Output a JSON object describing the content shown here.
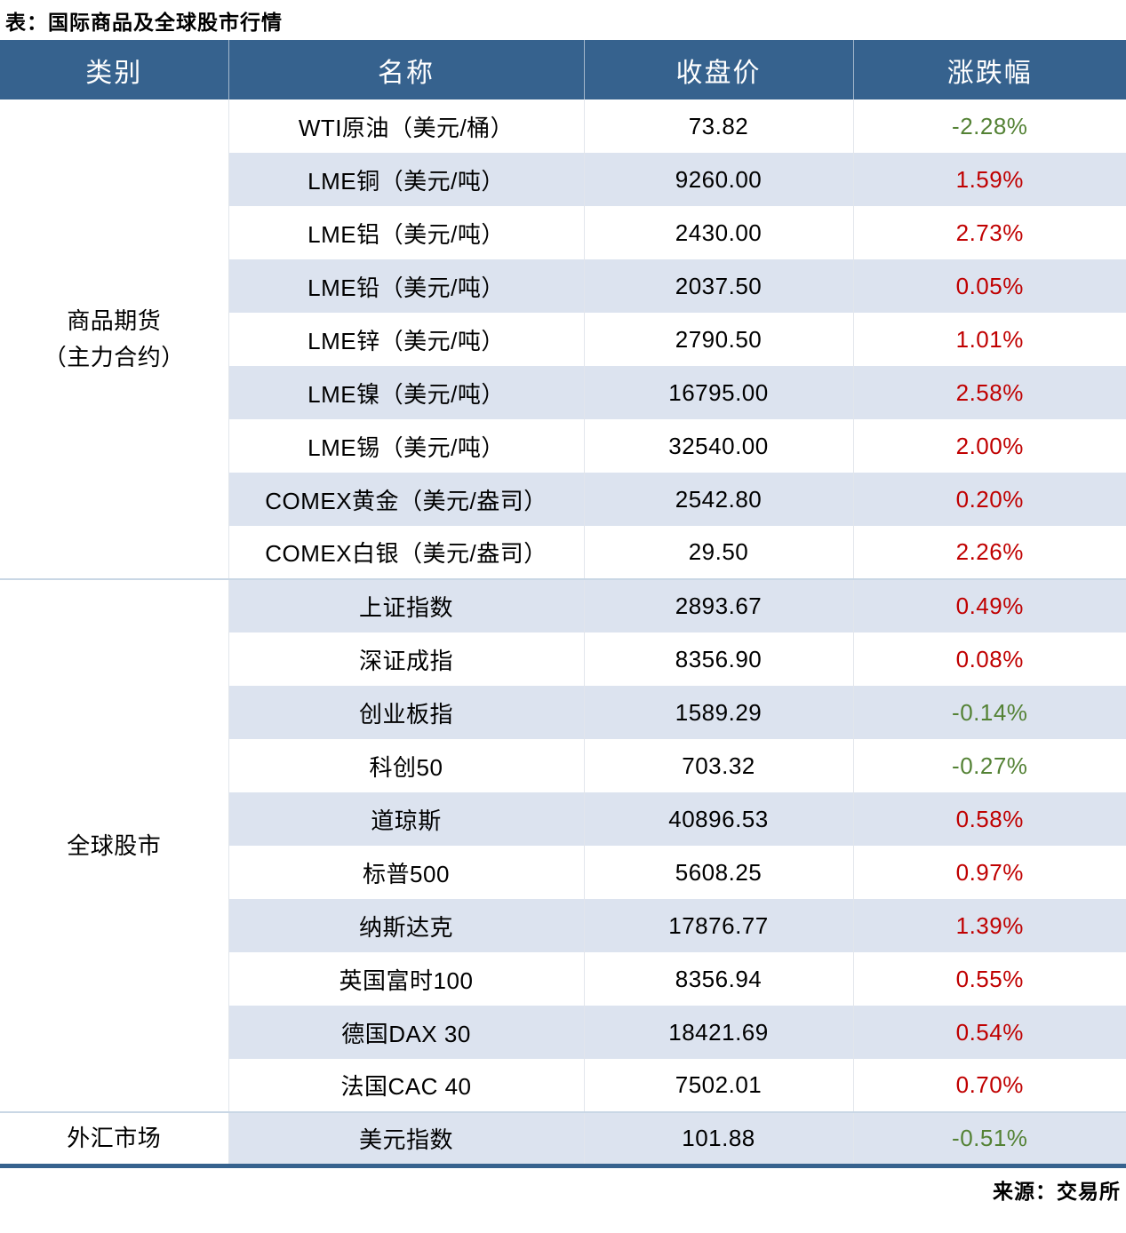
{
  "chart_data": {
    "type": "table",
    "title": "表：国际商品及全球股市行情",
    "source": "来源：交易所",
    "columns": [
      "类别",
      "名称",
      "收盘价",
      "涨跌幅"
    ],
    "legend_note": "red = 上涨(up), green = 下跌(down)",
    "sections": [
      {
        "category": "商品期货（主力合约）",
        "category_lines": [
          "商品期货",
          "（主力合约）"
        ],
        "rows": [
          {
            "name": "WTI原油（美元/桶）",
            "close": "73.82",
            "change": "-2.28%",
            "dir": "down"
          },
          {
            "name": "LME铜（美元/吨）",
            "close": "9260.00",
            "change": "1.59%",
            "dir": "up"
          },
          {
            "name": "LME铝（美元/吨）",
            "close": "2430.00",
            "change": "2.73%",
            "dir": "up"
          },
          {
            "name": "LME铅（美元/吨）",
            "close": "2037.50",
            "change": "0.05%",
            "dir": "up"
          },
          {
            "name": "LME锌（美元/吨）",
            "close": "2790.50",
            "change": "1.01%",
            "dir": "up"
          },
          {
            "name": "LME镍（美元/吨）",
            "close": "16795.00",
            "change": "2.58%",
            "dir": "up"
          },
          {
            "name": "LME锡（美元/吨）",
            "close": "32540.00",
            "change": "2.00%",
            "dir": "up"
          },
          {
            "name": "COMEX黄金（美元/盎司）",
            "close": "2542.80",
            "change": "0.20%",
            "dir": "up"
          },
          {
            "name": "COMEX白银（美元/盎司）",
            "close": "29.50",
            "change": "2.26%",
            "dir": "up"
          }
        ]
      },
      {
        "category": "全球股市",
        "category_lines": [
          "全球股市"
        ],
        "rows": [
          {
            "name": "上证指数",
            "close": "2893.67",
            "change": "0.49%",
            "dir": "up"
          },
          {
            "name": "深证成指",
            "close": "8356.90",
            "change": "0.08%",
            "dir": "up"
          },
          {
            "name": "创业板指",
            "close": "1589.29",
            "change": "-0.14%",
            "dir": "down"
          },
          {
            "name": "科创50",
            "close": "703.32",
            "change": "-0.27%",
            "dir": "down"
          },
          {
            "name": "道琼斯",
            "close": "40896.53",
            "change": "0.58%",
            "dir": "up"
          },
          {
            "name": "标普500",
            "close": "5608.25",
            "change": "0.97%",
            "dir": "up"
          },
          {
            "name": "纳斯达克",
            "close": "17876.77",
            "change": "1.39%",
            "dir": "up"
          },
          {
            "name": "英国富时100",
            "close": "8356.94",
            "change": "0.55%",
            "dir": "up"
          },
          {
            "name": "德国DAX 30",
            "close": "18421.69",
            "change": "0.54%",
            "dir": "up"
          },
          {
            "name": "法国CAC 40",
            "close": "7502.01",
            "change": "0.70%",
            "dir": "up"
          }
        ]
      },
      {
        "category": "外汇市场",
        "category_lines": [
          "外汇市场"
        ],
        "rows": [
          {
            "name": "美元指数",
            "close": "101.88",
            "change": "-0.51%",
            "dir": "down"
          }
        ]
      }
    ]
  },
  "colors": {
    "header_bg": "#36628E",
    "stripe": "#DCE3EF",
    "up": "#C00000",
    "down": "#548235",
    "section_line": "#C9D7E5",
    "divider": "#E2E6EC",
    "text": "#000000"
  }
}
